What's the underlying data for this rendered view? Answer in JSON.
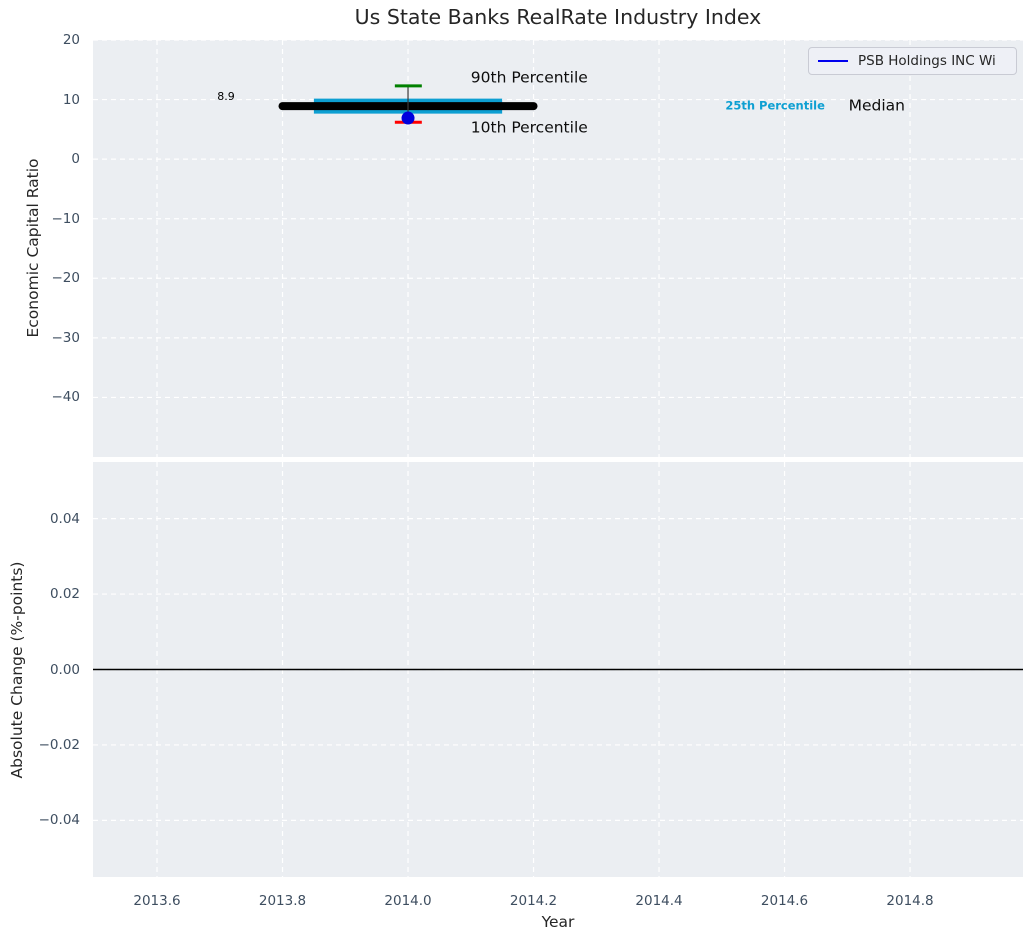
{
  "figure": {
    "title": "Us State Banks RealRate Industry Index",
    "background_color": "#ffffff",
    "axes_background_color": "#ebeef2",
    "grid_color": "#ffffff",
    "tick_label_color": "#3e4e60",
    "axis_label_color": "#262626",
    "title_color": "#262626"
  },
  "legend": {
    "label": "PSB Holdings INC Wi",
    "line_color": "#0000ee",
    "background_color": "#eef0f6",
    "border_color": "#c9cbd4",
    "text_color": "#262626"
  },
  "chart_data": [
    {
      "type": "line",
      "title": "Us State Banks RealRate Industry Index",
      "xlabel": "",
      "ylabel": "Economic Capital Ratio",
      "xlim": [
        2013.498,
        2014.98
      ],
      "ylim": [
        -50,
        20
      ],
      "grid": true,
      "legend_position": "upper right",
      "xticks": {
        "values": [
          2013.6,
          2013.8,
          2014.0,
          2014.2,
          2014.4,
          2014.6,
          2014.8
        ],
        "labels": [
          "2013.6",
          "2013.8",
          "2014.0",
          "2014.2",
          "2014.4",
          "2014.6",
          "2014.8"
        ],
        "show_labels": false
      },
      "yticks": {
        "values": [
          20,
          10,
          0,
          -10,
          -20,
          -30,
          -40
        ],
        "labels": [
          "20",
          "10",
          "0",
          "−10",
          "−20",
          "−30",
          "−40"
        ]
      },
      "stats": {
        "year": 2014.0,
        "company_value": 6.9,
        "median": 8.9,
        "percentile_90": 12.3,
        "percentile_25": 8.9,
        "percentile_10": 6.2
      },
      "marks": [
        {
          "kind": "segment",
          "name": "percentile-25-band",
          "x1": 2013.85,
          "x2": 2014.15,
          "y1": 8.9,
          "y2": 8.9,
          "color": "#0d9fd2",
          "width": 15,
          "cap": "butt"
        },
        {
          "kind": "segment",
          "name": "median-line",
          "x1": 2013.8,
          "x2": 2014.2,
          "y1": 8.9,
          "y2": 8.9,
          "color": "#000000",
          "width": 8,
          "cap": "round"
        },
        {
          "kind": "segment",
          "name": "percentile-whisker",
          "x1": 2014.0,
          "x2": 2014.0,
          "y1": 6.2,
          "y2": 12.3,
          "color": "#3a3a3a",
          "width": 1.2,
          "cap": "butt"
        },
        {
          "kind": "segment",
          "name": "percentile-90-cap",
          "x1": 2013.979,
          "x2": 2014.022,
          "y1": 12.3,
          "y2": 12.3,
          "color": "#008000",
          "width": 3,
          "cap": "butt"
        },
        {
          "kind": "segment",
          "name": "percentile-10-cap",
          "x1": 2013.979,
          "x2": 2014.022,
          "y1": 6.2,
          "y2": 6.2,
          "color": "#ff0000",
          "width": 3,
          "cap": "butt"
        },
        {
          "kind": "point",
          "name": "psb-holdings-point",
          "series": "PSB Holdings INC Wi",
          "x": 2014.0,
          "y": 6.9,
          "r": 6.5,
          "color": "#0000dd"
        }
      ],
      "annotations": [
        {
          "name": "median-value-label",
          "text": "8.9",
          "x": 2013.71,
          "y": 10.4,
          "color": "#000000",
          "size": 11,
          "weight": "normal",
          "anchor": "middle"
        },
        {
          "name": "percentile-90-label",
          "text": "90th Percentile",
          "x": 2014.1,
          "y": 13.6,
          "color": "#0d0d0d",
          "size": 15.5,
          "weight": "normal",
          "anchor": "start"
        },
        {
          "name": "percentile-10-label",
          "text": "10th Percentile",
          "x": 2014.1,
          "y": 5.3,
          "color": "#0d0d0d",
          "size": 15.5,
          "weight": "normal",
          "anchor": "start"
        },
        {
          "name": "percentile-25-label",
          "text": "25th Percentile",
          "x": 2014.585,
          "y": 8.9,
          "color": "#0d9fd2",
          "size": 11.5,
          "weight": "bold",
          "anchor": "middle"
        },
        {
          "name": "median-label",
          "text": "Median",
          "x": 2014.747,
          "y": 9.0,
          "color": "#0d0d0d",
          "size": 15.5,
          "weight": "normal",
          "anchor": "middle"
        }
      ]
    },
    {
      "type": "line",
      "title": "",
      "xlabel": "Year",
      "ylabel": "Absolute Change (%-points)",
      "xlim": [
        2013.498,
        2014.98
      ],
      "ylim": [
        -0.055,
        0.055
      ],
      "grid": true,
      "xticks": {
        "values": [
          2013.6,
          2013.8,
          2014.0,
          2014.2,
          2014.4,
          2014.6,
          2014.8
        ],
        "labels": [
          "2013.6",
          "2013.8",
          "2014.0",
          "2014.2",
          "2014.4",
          "2014.6",
          "2014.8"
        ],
        "show_labels": true
      },
      "yticks": {
        "values": [
          0.04,
          0.02,
          0.0,
          -0.02,
          -0.04
        ],
        "labels": [
          "0.04",
          "0.02",
          "0.00",
          "−0.02",
          "−0.04"
        ]
      },
      "marks": [
        {
          "kind": "segment",
          "name": "zero-change-line",
          "x1": 2013.498,
          "x2": 2014.98,
          "y1": 0,
          "y2": 0,
          "color": "#000000",
          "width": 1.5,
          "cap": "butt"
        }
      ],
      "annotations": []
    }
  ]
}
